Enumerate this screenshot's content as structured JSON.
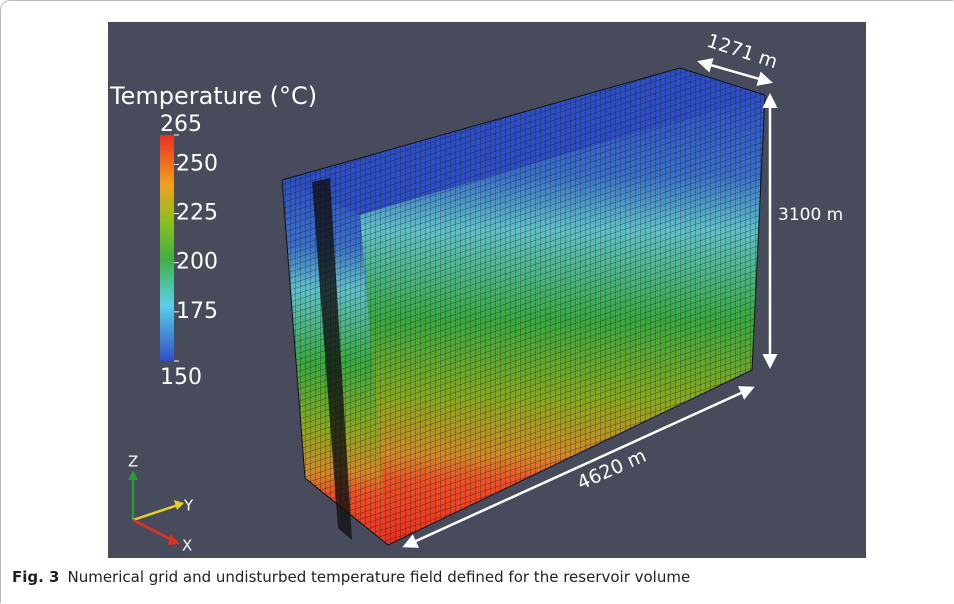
{
  "figure": {
    "colorbar": {
      "title": "Temperature (°C)",
      "range": [
        150,
        265
      ],
      "ticks": [
        265,
        250,
        225,
        200,
        175,
        150
      ]
    },
    "dimensions": {
      "width": "1271 m",
      "height": "3100 m",
      "length": "4620 m"
    },
    "axes": {
      "z": "Z",
      "y": "Y",
      "x": "X"
    }
  },
  "caption": {
    "label": "Fig. 3",
    "text": "Numerical grid and undisturbed temperature field defined for the reservoir volume"
  }
}
